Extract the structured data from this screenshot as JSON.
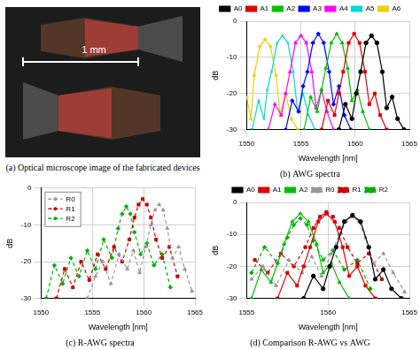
{
  "figure": {
    "image": {
      "title": "(a) Optical microscope image of the fabricated devices",
      "scale_bar": "1 mm"
    }
  },
  "chart_data": [
    {
      "type": "line",
      "title": "(b) AWG spectra",
      "x_label": "Wavelength [nm]",
      "y_label": "dB",
      "xlim": [
        1550,
        1565
      ],
      "xticks": [
        1550,
        1555,
        1560,
        1565
      ],
      "ylim": [
        -30,
        0
      ],
      "yticks": [
        -30,
        -20,
        -10,
        0
      ],
      "grid": true,
      "legend": "top",
      "series": [
        {
          "name": "A0",
          "color": "#000000",
          "marker": "circle",
          "line_style": "solid",
          "x": [
            1558.5,
            1559.1,
            1559.7,
            1560.1,
            1560.5,
            1561.0,
            1561.5,
            1562.0,
            1562.5,
            1562.9,
            1563.4,
            1563.9,
            1564.5
          ],
          "values": [
            -30,
            -23,
            -27,
            -20,
            -14,
            -6,
            -4,
            -6,
            -14,
            -24,
            -21,
            -27,
            -30
          ]
        },
        {
          "name": "A1",
          "color": "#e00000",
          "marker": "square",
          "line_style": "solid",
          "x": [
            1556.9,
            1557.5,
            1558.1,
            1558.5,
            1558.9,
            1559.4,
            1559.9,
            1560.4,
            1560.9,
            1561.3,
            1561.8,
            1562.3,
            1562.9
          ],
          "values": [
            -30,
            -22,
            -26,
            -20,
            -14,
            -6,
            -3.5,
            -6,
            -14,
            -23,
            -20,
            -26,
            -30
          ]
        },
        {
          "name": "A2",
          "color": "#00c000",
          "marker": "triangle",
          "line_style": "solid",
          "x": [
            1555.3,
            1555.9,
            1556.5,
            1556.9,
            1557.3,
            1557.8,
            1558.3,
            1558.8,
            1559.3,
            1559.7,
            1560.2,
            1560.7,
            1561.3
          ],
          "values": [
            -30,
            -21,
            -25,
            -19,
            -13,
            -6,
            -3.5,
            -6,
            -13,
            -22,
            -19,
            -25,
            -30
          ]
        },
        {
          "name": "A3",
          "color": "#0000ff",
          "marker": "diamond",
          "line_style": "solid",
          "x": [
            1553.6,
            1554.2,
            1554.8,
            1555.2,
            1555.6,
            1556.1,
            1556.6,
            1557.1,
            1557.6,
            1558.0,
            1558.5,
            1559.0,
            1559.6
          ],
          "values": [
            -30,
            -22,
            -25,
            -18,
            -14,
            -6,
            -3.5,
            -6,
            -14,
            -23,
            -18,
            -26,
            -30
          ]
        },
        {
          "name": "A4",
          "color": "#ff00ff",
          "marker": "triangle",
          "line_style": "solid",
          "x": [
            1552.0,
            1552.6,
            1553.2,
            1553.6,
            1554.0,
            1554.5,
            1555.0,
            1555.5,
            1556.0,
            1556.4,
            1556.9,
            1557.4,
            1558.0
          ],
          "values": [
            -30,
            -23,
            -26,
            -20,
            -14,
            -6,
            -4,
            -6,
            -14,
            -24,
            -19,
            -25,
            -30
          ]
        },
        {
          "name": "A5",
          "color": "#00d8d8",
          "marker": "cross",
          "line_style": "solid",
          "x": [
            1550.5,
            1551.1,
            1551.6,
            1551.9,
            1552.3,
            1552.8,
            1553.3,
            1553.8,
            1554.3,
            1554.7,
            1555.2,
            1555.7,
            1556.3
          ],
          "values": [
            -30,
            -22,
            -27,
            -19,
            -14,
            -6,
            -4,
            -6,
            -14,
            -25,
            -20,
            -26,
            -30
          ]
        },
        {
          "name": "A6",
          "color": "#f0d000",
          "marker": "star",
          "line_style": "solid",
          "x": [
            1550.0,
            1550.4,
            1550.7,
            1551.2,
            1551.7,
            1552.2,
            1552.7,
            1553.1,
            1553.6,
            1554.1,
            1554.7
          ],
          "values": [
            -21,
            -27,
            -15,
            -7,
            -5,
            -7,
            -15,
            -26,
            -20,
            -27,
            -30
          ]
        }
      ]
    },
    {
      "type": "line",
      "title": "(c) R-AWG spectra",
      "x_label": "Wavelength [nm]",
      "y_label": "dB",
      "xlim": [
        1550,
        1565
      ],
      "xticks": [
        1550,
        1555,
        1560,
        1565
      ],
      "ylim": [
        -30,
        0
      ],
      "yticks": [
        -30,
        -20,
        -10,
        0
      ],
      "grid": true,
      "legend": "upper left",
      "series": [
        {
          "name": "R0",
          "color": "#999999",
          "marker": "triangle",
          "line_style": "dashed",
          "x": [
            1554.5,
            1555.3,
            1556.0,
            1556.8,
            1557.6,
            1558.4,
            1559.0,
            1559.6,
            1560.2,
            1560.7,
            1561.1,
            1561.5,
            1561.9,
            1562.3,
            1562.8,
            1563.4,
            1564.0,
            1564.7
          ],
          "values": [
            -30,
            -24,
            -20,
            -26,
            -18,
            -22,
            -17,
            -23,
            -16,
            -10,
            -6,
            -4.5,
            -6,
            -11,
            -19,
            -16,
            -22,
            -28
          ]
        },
        {
          "name": "R1",
          "color": "#cc0000",
          "marker": "square",
          "line_style": "dashed",
          "x": [
            1551.5,
            1552.3,
            1553.1,
            1553.9,
            1554.7,
            1555.5,
            1556.3,
            1557.1,
            1557.9,
            1558.6,
            1559.1,
            1559.5,
            1559.9,
            1560.3,
            1560.7,
            1561.2,
            1561.8,
            1562.5,
            1563.3
          ],
          "values": [
            -30,
            -22,
            -27,
            -20,
            -25,
            -18,
            -22,
            -16,
            -20,
            -14,
            -8,
            -4.5,
            -3,
            -4.5,
            -8,
            -14,
            -19,
            -16,
            -24
          ]
        },
        {
          "name": "R2",
          "color": "#00b000",
          "marker": "diamond",
          "line_style": "dashed",
          "x": [
            1550.5,
            1551.3,
            1552.1,
            1552.9,
            1553.7,
            1554.5,
            1555.3,
            1556.1,
            1556.9,
            1557.5,
            1557.9,
            1558.3,
            1558.7,
            1559.1,
            1559.7,
            1560.3,
            1561.0,
            1561.8,
            1562.6
          ],
          "values": [
            -30,
            -21,
            -26,
            -19,
            -24,
            -17,
            -22,
            -14,
            -19,
            -11,
            -7,
            -5,
            -7,
            -12,
            -18,
            -15,
            -21,
            -18,
            -27
          ]
        }
      ]
    },
    {
      "type": "line",
      "title": "(d) Comparison R-AWG vs AWG",
      "x_label": "Wavelength [nm]",
      "y_label": "dB",
      "xlim": [
        1555,
        1565
      ],
      "xticks": [
        1555,
        1560,
        1565
      ],
      "ylim": [
        -30,
        0
      ],
      "yticks": [
        -30,
        -20,
        -10,
        0
      ],
      "grid": true,
      "legend": "top",
      "series": [
        {
          "name": "A0",
          "color": "#000000",
          "marker": "circle",
          "line_style": "solid",
          "x": [
            1558.5,
            1559.1,
            1559.7,
            1560.1,
            1560.5,
            1561.0,
            1561.5,
            1562.0,
            1562.5,
            1562.9,
            1563.4,
            1563.9,
            1564.5
          ],
          "values": [
            -30,
            -23,
            -27,
            -20,
            -14,
            -6,
            -4,
            -6,
            -14,
            -24,
            -21,
            -27,
            -30
          ]
        },
        {
          "name": "A1",
          "color": "#e00000",
          "marker": "square",
          "line_style": "solid",
          "x": [
            1556.9,
            1557.5,
            1558.1,
            1558.5,
            1558.9,
            1559.4,
            1559.9,
            1560.4,
            1560.9,
            1561.3,
            1561.8,
            1562.3,
            1562.9
          ],
          "values": [
            -30,
            -22,
            -26,
            -20,
            -14,
            -6,
            -3.5,
            -6,
            -14,
            -23,
            -20,
            -26,
            -30
          ]
        },
        {
          "name": "A2",
          "color": "#00c000",
          "marker": "triangle",
          "line_style": "solid",
          "x": [
            1555.3,
            1555.9,
            1556.5,
            1556.9,
            1557.3,
            1557.8,
            1558.3,
            1558.8,
            1559.3,
            1559.7,
            1560.2,
            1560.7,
            1561.3
          ],
          "values": [
            -30,
            -21,
            -25,
            -19,
            -13,
            -6,
            -3.5,
            -6,
            -13,
            -22,
            -19,
            -25,
            -30
          ]
        },
        {
          "name": "R0",
          "color": "#999999",
          "marker": "triangle",
          "line_style": "dashed",
          "x": [
            1555.3,
            1556.0,
            1556.8,
            1557.6,
            1558.4,
            1559.0,
            1559.6,
            1560.2,
            1560.7,
            1561.1,
            1561.5,
            1561.9,
            1562.3,
            1562.8,
            1563.4,
            1564.0,
            1564.7
          ],
          "values": [
            -24,
            -20,
            -26,
            -18,
            -22,
            -17,
            -23,
            -16,
            -10,
            -6,
            -4.5,
            -6,
            -11,
            -19,
            -16,
            -22,
            -28
          ]
        },
        {
          "name": "R1",
          "color": "#cc0000",
          "marker": "square",
          "line_style": "dashed",
          "x": [
            1555.5,
            1556.3,
            1557.1,
            1557.9,
            1558.6,
            1559.1,
            1559.5,
            1559.9,
            1560.3,
            1560.7,
            1561.2,
            1561.8,
            1562.5,
            1563.3
          ],
          "values": [
            -18,
            -22,
            -16,
            -20,
            -14,
            -8,
            -4.5,
            -3,
            -4.5,
            -8,
            -14,
            -19,
            -16,
            -24
          ]
        },
        {
          "name": "R2",
          "color": "#00b000",
          "marker": "diamond",
          "line_style": "dashed",
          "x": [
            1555.3,
            1556.1,
            1556.9,
            1557.5,
            1557.9,
            1558.3,
            1558.7,
            1559.1,
            1559.7,
            1560.3,
            1561.0,
            1561.8,
            1562.6
          ],
          "values": [
            -22,
            -14,
            -19,
            -11,
            -7,
            -5,
            -7,
            -12,
            -18,
            -15,
            -21,
            -18,
            -27
          ]
        }
      ]
    }
  ]
}
